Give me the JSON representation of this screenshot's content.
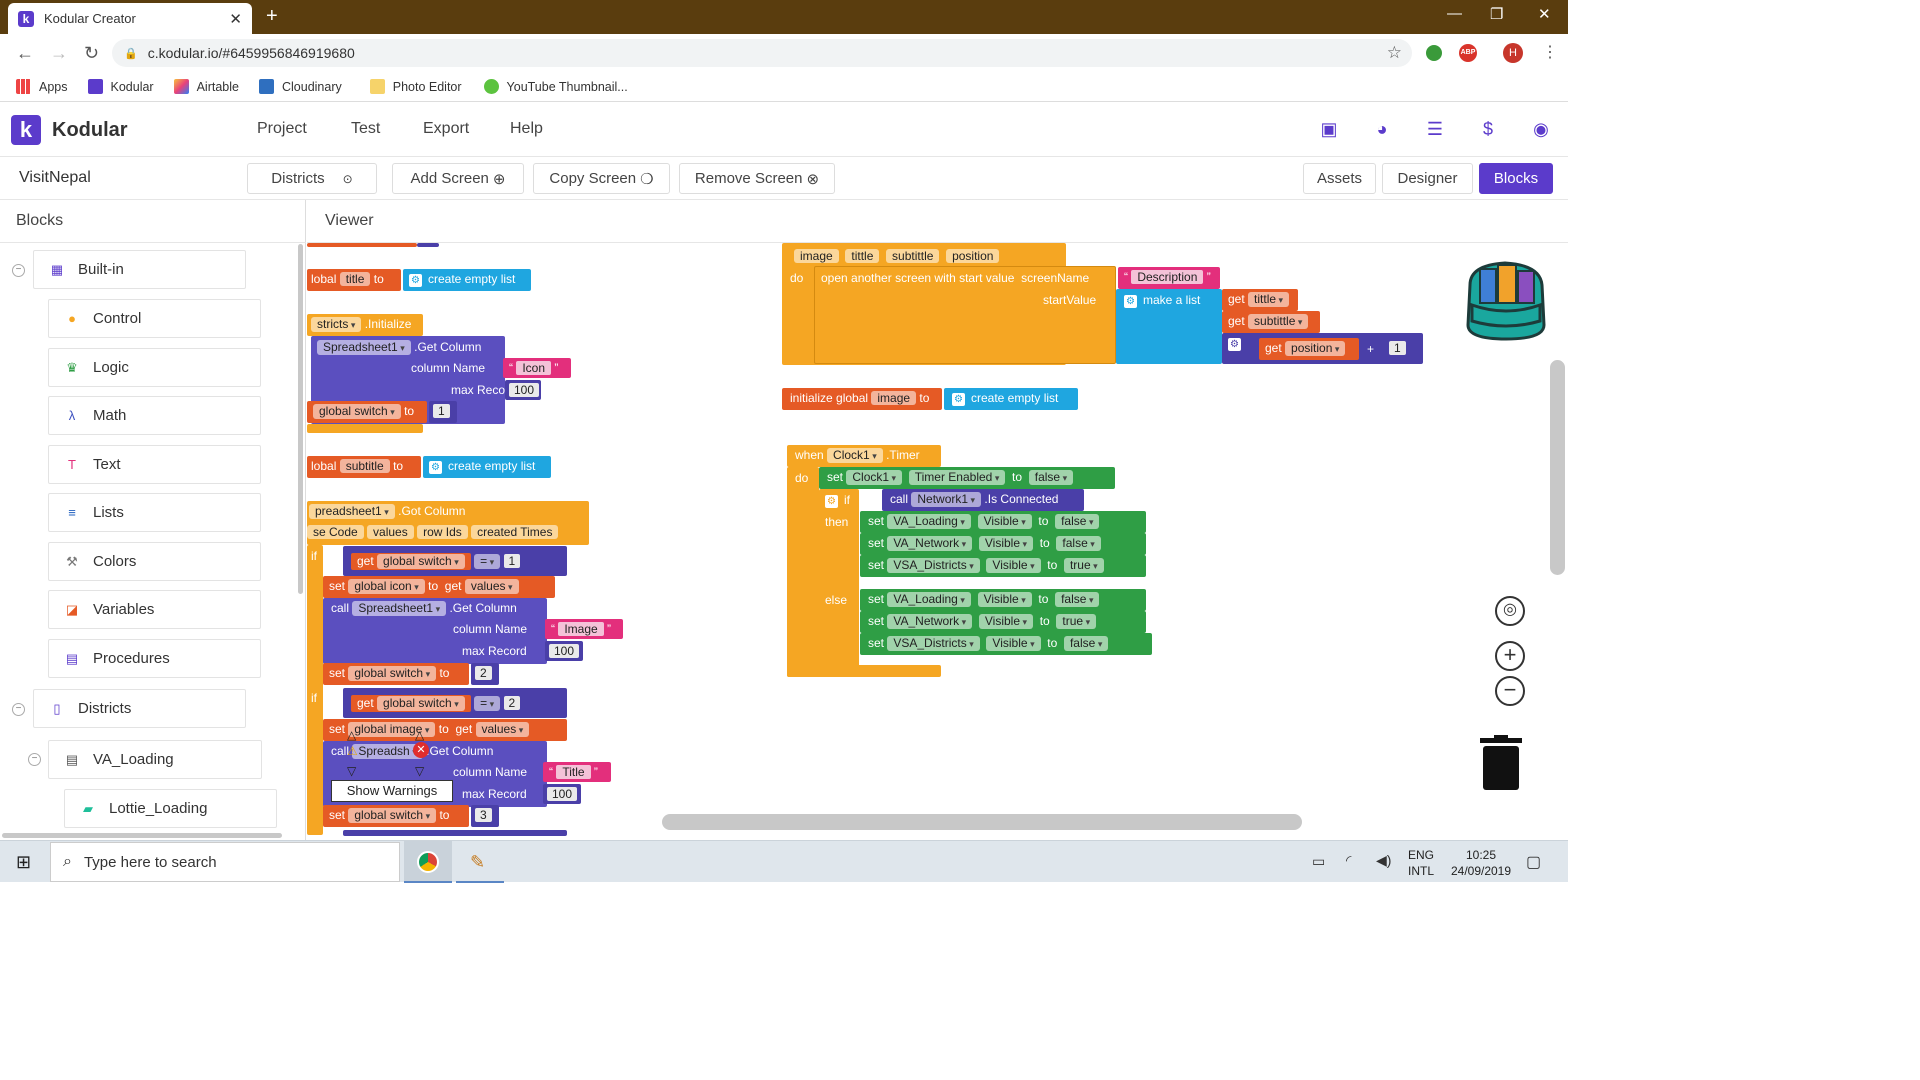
{
  "browser": {
    "tab_title": "Kodular Creator",
    "url": "c.kodular.io/#6459956846919680",
    "bookmarks": [
      "Apps",
      "Kodular",
      "Airtable",
      "Cloudinary",
      "Photo Editor",
      "YouTube Thumbnail..."
    ],
    "profile_initial": "H"
  },
  "header": {
    "app_name": "Kodular",
    "menu": [
      "Project",
      "Test",
      "Export",
      "Help"
    ]
  },
  "toolbar": {
    "project_name": "VisitNepal",
    "screen_select": "Districts",
    "add_screen": "Add Screen",
    "copy_screen": "Copy Screen",
    "remove_screen": "Remove Screen",
    "assets": "Assets",
    "designer": "Designer",
    "blocks": "Blocks"
  },
  "blocks_panel": {
    "title": "Blocks",
    "builtin": "Built-in",
    "items": [
      "Control",
      "Logic",
      "Math",
      "Text",
      "Lists",
      "Colors",
      "Variables",
      "Procedures"
    ],
    "districts": "Districts",
    "va_loading": "VA_Loading",
    "lottie_loading": "Lottie_Loading"
  },
  "viewer": {
    "title": "Viewer",
    "show_warnings": "Show Warnings",
    "left_blocks": {
      "l1_a": "lobal",
      "l1_b": "title",
      "l1_c": "to",
      "l1_d": "create empty list",
      "l2_a": "stricts",
      "l2_b": ".Initialize",
      "l3_a": "Spreadsheet1",
      "l3_b": ".Get Column",
      "l4_a": "column Name",
      "l4_b": "Icon",
      "l5_a": "max Record",
      "l5_b": "100",
      "l6_a": "global switch",
      "l6_b": "to",
      "l6_c": "1",
      "l7_a": "lobal",
      "l7_b": "subtitle",
      "l7_c": "to",
      "l7_d": "create empty list",
      "l8_a": "preadsheet1",
      "l8_b": ".Got Column",
      "l9_a": "se Code",
      "l9_b": "values",
      "l9_c": "row Ids",
      "l9_d": "created Times",
      "l10_a": "if",
      "l10_b": "get",
      "l10_c": "global switch",
      "l10_d": "=",
      "l10_e": "1",
      "l11_a": "set",
      "l11_b": "global icon",
      "l11_c": "to",
      "l11_d": "get",
      "l11_e": "values",
      "l12_a": "call",
      "l12_b": "Spreadsheet1",
      "l12_c": ".Get Column",
      "l13_a": "column Name",
      "l13_b": "Image",
      "l14_a": "max Record",
      "l14_b": "100",
      "l15_a": "set",
      "l15_b": "global switch",
      "l15_c": "to",
      "l15_d": "2",
      "l16_a": "if",
      "l16_b": "get",
      "l16_c": "global switch",
      "l16_d": "=",
      "l16_e": "2",
      "l17_a": "set",
      "l17_b": "global image",
      "l17_c": "to",
      "l17_d": "get",
      "l17_e": "values",
      "l18_a": "call",
      "l18_b": "Spreadsh",
      "l18_c": ".Get Column",
      "l19_a": "column Name",
      "l19_b": "Title",
      "l20_a": "max Record",
      "l20_b": "100",
      "l21_a": "set",
      "l21_b": "global switch",
      "l21_c": "to",
      "l21_d": "3"
    },
    "right_blocks": {
      "p_image": "image",
      "p_tittle": "tittle",
      "p_subtittle": "subtittle",
      "p_position": "position",
      "do": "do",
      "open_screen": "open another screen with start value",
      "screen_name": "screenName",
      "description": "Description",
      "start_value": "startValue",
      "make_list": "make a list",
      "get": "get",
      "tittle": "tittle",
      "subtittle": "subtittle",
      "position": "position",
      "plus": "+",
      "one": "1",
      "init_global": "initialize global",
      "image": "image",
      "to": "to",
      "create_empty": "create empty list",
      "when": "when",
      "clock": "Clock1",
      "timer": ".Timer",
      "set": "set",
      "timer_enabled": "Timer Enabled",
      "false": "false",
      "true": "true",
      "if": "if",
      "call": "call",
      "network": "Network1",
      "is_connected": ".Is Connected",
      "then": "then",
      "else": "else",
      "va_loading": "VA_Loading",
      "va_network": "VA_Network",
      "vsa_districts": "VSA_Districts",
      "visible": "Visible"
    }
  },
  "taskbar": {
    "search_placeholder": "Type here to search",
    "lang1": "ENG",
    "lang2": "INTL",
    "time": "10:25",
    "date": "24/09/2019"
  }
}
